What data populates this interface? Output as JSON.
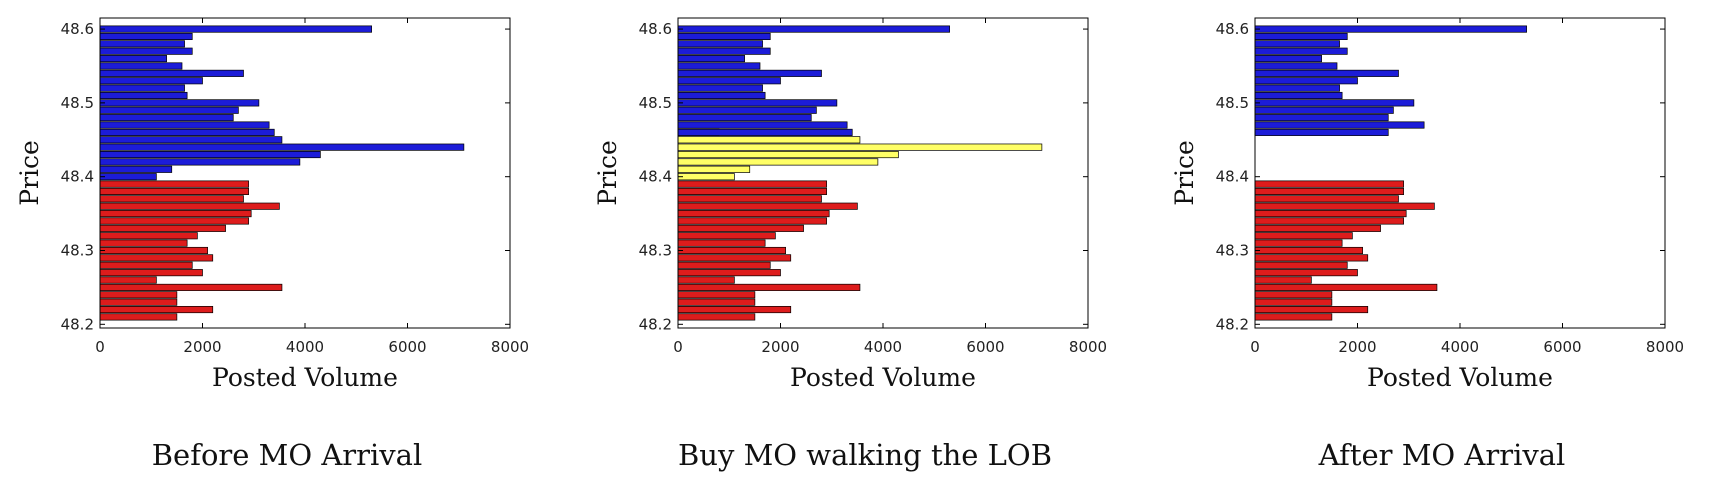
{
  "figure": {
    "colors": {
      "ask": "#1c1cd8",
      "bid": "#dd1c1c",
      "consumed": "#ffff66",
      "edge": "#000000"
    }
  },
  "chart_data": [
    {
      "type": "bar",
      "orientation": "horizontal",
      "caption": "Before MO Arrival",
      "xlabel": "Posted Volume",
      "ylabel": "Price",
      "xlim": [
        0,
        8000
      ],
      "ylim": [
        48.195,
        48.615
      ],
      "xticks": [
        "0",
        "2000",
        "4000",
        "6000",
        "8000"
      ],
      "yticks": [
        "48.2",
        "48.3",
        "48.4",
        "48.5",
        "48.6"
      ],
      "grid": false,
      "series": [
        {
          "side": "ask",
          "color": "#1c1cd8",
          "prices": [
            48.4,
            48.41,
            48.42,
            48.43,
            48.44,
            48.45,
            48.46,
            48.47,
            48.48,
            48.49,
            48.5,
            48.51,
            48.52,
            48.53,
            48.54,
            48.55,
            48.56,
            48.57,
            48.58,
            48.59,
            48.6
          ],
          "volumes": [
            1100,
            1400,
            3900,
            4300,
            7100,
            3550,
            3400,
            3300,
            2600,
            2700,
            3100,
            1700,
            1650,
            2000,
            2800,
            1600,
            1300,
            1800,
            1650,
            1800,
            5300
          ]
        },
        {
          "side": "bid",
          "color": "#dd1c1c",
          "prices": [
            48.21,
            48.22,
            48.23,
            48.24,
            48.25,
            48.26,
            48.27,
            48.28,
            48.29,
            48.3,
            48.31,
            48.32,
            48.33,
            48.34,
            48.35,
            48.36,
            48.37,
            48.38,
            48.39
          ],
          "volumes": [
            1500,
            2200,
            1500,
            1500,
            3550,
            1100,
            2000,
            1800,
            2200,
            2100,
            1700,
            1900,
            2450,
            2900,
            2950,
            3500,
            2800,
            2900,
            2900
          ]
        }
      ]
    },
    {
      "type": "bar",
      "orientation": "horizontal",
      "caption": "Buy MO walking the LOB",
      "xlabel": "Posted Volume",
      "ylabel": "Price",
      "xlim": [
        0,
        8000
      ],
      "ylim": [
        48.195,
        48.615
      ],
      "xticks": [
        "0",
        "2000",
        "4000",
        "6000",
        "8000"
      ],
      "yticks": [
        "48.2",
        "48.3",
        "48.4",
        "48.5",
        "48.6"
      ],
      "grid": false,
      "series": [
        {
          "side": "consumed",
          "color": "#ffff66",
          "prices": [
            48.4,
            48.41,
            48.42,
            48.43,
            48.44,
            48.45,
            48.46
          ],
          "volumes": [
            1100,
            1400,
            3900,
            4300,
            7100,
            3550,
            800
          ]
        },
        {
          "side": "ask",
          "color": "#1c1cd8",
          "prices": [
            48.46,
            48.47,
            48.48,
            48.49,
            48.5,
            48.51,
            48.52,
            48.53,
            48.54,
            48.55,
            48.56,
            48.57,
            48.58,
            48.59,
            48.6
          ],
          "volumes": [
            3400,
            3300,
            2600,
            2700,
            3100,
            1700,
            1650,
            2000,
            2800,
            1600,
            1300,
            1800,
            1650,
            1800,
            5300
          ]
        },
        {
          "side": "bid",
          "color": "#dd1c1c",
          "prices": [
            48.21,
            48.22,
            48.23,
            48.24,
            48.25,
            48.26,
            48.27,
            48.28,
            48.29,
            48.3,
            48.31,
            48.32,
            48.33,
            48.34,
            48.35,
            48.36,
            48.37,
            48.38,
            48.39
          ],
          "volumes": [
            1500,
            2200,
            1500,
            1500,
            3550,
            1100,
            2000,
            1800,
            2200,
            2100,
            1700,
            1900,
            2450,
            2900,
            2950,
            3500,
            2800,
            2900,
            2900
          ]
        }
      ]
    },
    {
      "type": "bar",
      "orientation": "horizontal",
      "caption": "After MO Arrival",
      "xlabel": "Posted Volume",
      "ylabel": "Price",
      "xlim": [
        0,
        8000
      ],
      "ylim": [
        48.195,
        48.615
      ],
      "xticks": [
        "0",
        "2000",
        "4000",
        "6000",
        "8000"
      ],
      "yticks": [
        "48.2",
        "48.3",
        "48.4",
        "48.5",
        "48.6"
      ],
      "grid": false,
      "series": [
        {
          "side": "ask",
          "color": "#1c1cd8",
          "prices": [
            48.46,
            48.47,
            48.48,
            48.49,
            48.5,
            48.51,
            48.52,
            48.53,
            48.54,
            48.55,
            48.56,
            48.57,
            48.58,
            48.59,
            48.6
          ],
          "volumes": [
            2600,
            3300,
            2600,
            2700,
            3100,
            1700,
            1650,
            2000,
            2800,
            1600,
            1300,
            1800,
            1650,
            1800,
            5300
          ]
        },
        {
          "side": "bid",
          "color": "#dd1c1c",
          "prices": [
            48.21,
            48.22,
            48.23,
            48.24,
            48.25,
            48.26,
            48.27,
            48.28,
            48.29,
            48.3,
            48.31,
            48.32,
            48.33,
            48.34,
            48.35,
            48.36,
            48.37,
            48.38,
            48.39
          ],
          "volumes": [
            1500,
            2200,
            1500,
            1500,
            3550,
            1100,
            2000,
            1800,
            2200,
            2100,
            1700,
            1900,
            2450,
            2900,
            2950,
            3500,
            2800,
            2900,
            2900
          ]
        }
      ]
    }
  ]
}
